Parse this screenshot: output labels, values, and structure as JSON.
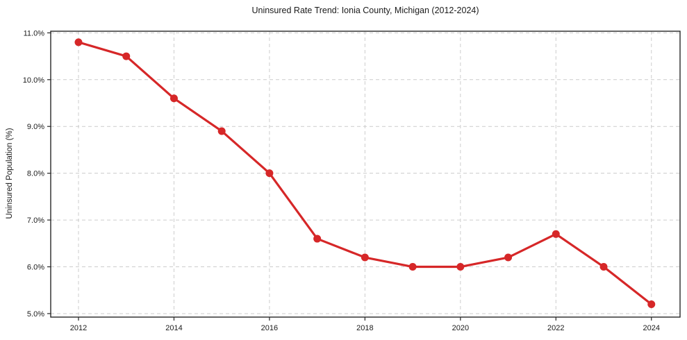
{
  "chart_data": {
    "type": "line",
    "title": "Uninsured Rate Trend: Ionia County, Michigan (2012-2024)",
    "ylabel": "Uninsured Population (%)",
    "xlabel": "",
    "x": [
      2012,
      2013,
      2014,
      2015,
      2016,
      2017,
      2018,
      2019,
      2020,
      2021,
      2022,
      2023,
      2024
    ],
    "values": [
      10.8,
      10.5,
      9.6,
      8.9,
      8.0,
      6.6,
      6.2,
      6.0,
      6.0,
      6.2,
      6.7,
      6.0,
      5.2
    ],
    "xticks": [
      {
        "v": 2012,
        "label": "2012"
      },
      {
        "v": 2014,
        "label": "2014"
      },
      {
        "v": 2016,
        "label": "2016"
      },
      {
        "v": 2018,
        "label": "2018"
      },
      {
        "v": 2020,
        "label": "2020"
      },
      {
        "v": 2022,
        "label": "2022"
      },
      {
        "v": 2024,
        "label": "2024"
      }
    ],
    "yticks": [
      {
        "v": 5.0,
        "label": "5.0%"
      },
      {
        "v": 6.0,
        "label": "6.0%"
      },
      {
        "v": 7.0,
        "label": "7.0%"
      },
      {
        "v": 8.0,
        "label": "8.0%"
      },
      {
        "v": 9.0,
        "label": "9.0%"
      },
      {
        "v": 10.0,
        "label": "10.0%"
      },
      {
        "v": 11.0,
        "label": "11.0%"
      }
    ],
    "xlim": [
      2011.418,
      2024.6
    ],
    "ylim": [
      4.925,
      11.035
    ],
    "grid": true,
    "grid_style": "dashed",
    "legend": "none",
    "line_color": "#d62728",
    "grid_color": "#cccccc",
    "frame_color": "#262626",
    "marker": "circle"
  }
}
